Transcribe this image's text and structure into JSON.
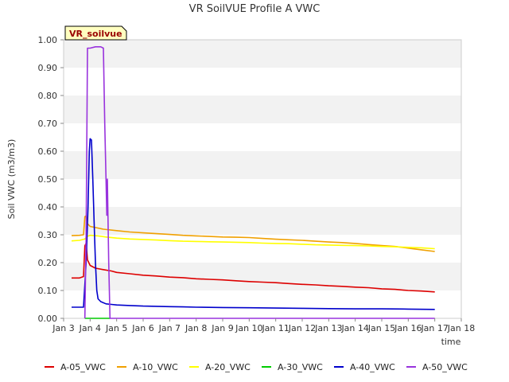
{
  "chart_data": {
    "type": "line",
    "title": "VR SoilVUE Profile A VWC",
    "xlabel": "time",
    "ylabel": "Soil VWC (m3/m3)",
    "site_badge": "VR_soilvue",
    "xlim": [
      3,
      18
    ],
    "ylim": [
      0,
      1.0
    ],
    "x_ticks": [
      3,
      4,
      5,
      6,
      7,
      8,
      9,
      10,
      11,
      12,
      13,
      14,
      15,
      16,
      17,
      18
    ],
    "x_tick_labels": [
      "Jan 3",
      "Jan 4",
      "Jan 5",
      "Jan 6",
      "Jan 7",
      "Jan 8",
      "Jan 9",
      "Jan 10",
      "Jan 11",
      "Jan 12",
      "Jan 13",
      "Jan 14",
      "Jan 15",
      "Jan 16",
      "Jan 17",
      "Jan 18"
    ],
    "y_ticks": [
      0,
      0.1,
      0.2,
      0.3,
      0.4,
      0.5,
      0.6,
      0.7,
      0.8,
      0.9,
      1.0
    ],
    "y_tick_labels": [
      "0.00",
      "0.10",
      "0.20",
      "0.30",
      "0.40",
      "0.50",
      "0.60",
      "0.70",
      "0.80",
      "0.90",
      "1.00"
    ],
    "grid": "horizontal bands",
    "legend_position": "bottom",
    "series": [
      {
        "name": "A-05_VWC",
        "color": "#dd0000",
        "points": [
          [
            3.3,
            0.145
          ],
          [
            3.6,
            0.145
          ],
          [
            3.75,
            0.15
          ],
          [
            3.8,
            0.26
          ],
          [
            3.85,
            0.27
          ],
          [
            3.9,
            0.21
          ],
          [
            4.0,
            0.19
          ],
          [
            4.2,
            0.18
          ],
          [
            4.5,
            0.175
          ],
          [
            4.8,
            0.17
          ],
          [
            5.0,
            0.165
          ],
          [
            5.5,
            0.16
          ],
          [
            6.0,
            0.155
          ],
          [
            6.5,
            0.152
          ],
          [
            7.0,
            0.148
          ],
          [
            7.5,
            0.146
          ],
          [
            8.0,
            0.142
          ],
          [
            8.5,
            0.14
          ],
          [
            9.0,
            0.138
          ],
          [
            9.5,
            0.135
          ],
          [
            10.0,
            0.132
          ],
          [
            10.5,
            0.13
          ],
          [
            11.0,
            0.128
          ],
          [
            11.5,
            0.125
          ],
          [
            12.0,
            0.122
          ],
          [
            12.5,
            0.12
          ],
          [
            13.0,
            0.117
          ],
          [
            13.5,
            0.115
          ],
          [
            14.0,
            0.112
          ],
          [
            14.5,
            0.11
          ],
          [
            15.0,
            0.106
          ],
          [
            15.5,
            0.104
          ],
          [
            16.0,
            0.1
          ],
          [
            16.5,
            0.098
          ],
          [
            17.0,
            0.095
          ]
        ]
      },
      {
        "name": "A-10_VWC",
        "color": "#f0a000",
        "points": [
          [
            3.3,
            0.297
          ],
          [
            3.6,
            0.298
          ],
          [
            3.75,
            0.3
          ],
          [
            3.8,
            0.365
          ],
          [
            3.85,
            0.368
          ],
          [
            3.9,
            0.34
          ],
          [
            4.0,
            0.33
          ],
          [
            4.5,
            0.32
          ],
          [
            5.0,
            0.315
          ],
          [
            5.5,
            0.31
          ],
          [
            6.0,
            0.307
          ],
          [
            6.5,
            0.304
          ],
          [
            7.0,
            0.301
          ],
          [
            7.5,
            0.298
          ],
          [
            8.0,
            0.296
          ],
          [
            8.5,
            0.294
          ],
          [
            9.0,
            0.292
          ],
          [
            9.5,
            0.291
          ],
          [
            10.0,
            0.29
          ],
          [
            10.5,
            0.287
          ],
          [
            11.0,
            0.284
          ],
          [
            11.5,
            0.282
          ],
          [
            12.0,
            0.28
          ],
          [
            12.5,
            0.277
          ],
          [
            13.0,
            0.274
          ],
          [
            13.5,
            0.272
          ],
          [
            14.0,
            0.269
          ],
          [
            14.5,
            0.265
          ],
          [
            15.0,
            0.261
          ],
          [
            15.5,
            0.258
          ],
          [
            16.0,
            0.252
          ],
          [
            16.5,
            0.246
          ],
          [
            17.0,
            0.24
          ]
        ]
      },
      {
        "name": "A-20_VWC",
        "color": "#ffff00",
        "points": [
          [
            3.3,
            0.278
          ],
          [
            3.6,
            0.28
          ],
          [
            3.8,
            0.285
          ],
          [
            3.9,
            0.295
          ],
          [
            4.0,
            0.298
          ],
          [
            4.3,
            0.296
          ],
          [
            4.6,
            0.292
          ],
          [
            5.0,
            0.288
          ],
          [
            5.5,
            0.285
          ],
          [
            6.0,
            0.283
          ],
          [
            6.5,
            0.281
          ],
          [
            7.0,
            0.279
          ],
          [
            7.5,
            0.277
          ],
          [
            8.0,
            0.276
          ],
          [
            8.5,
            0.275
          ],
          [
            9.0,
            0.274
          ],
          [
            9.5,
            0.273
          ],
          [
            10.0,
            0.272
          ],
          [
            10.5,
            0.27
          ],
          [
            11.0,
            0.269
          ],
          [
            11.5,
            0.268
          ],
          [
            12.0,
            0.266
          ],
          [
            12.5,
            0.264
          ],
          [
            13.0,
            0.263
          ],
          [
            13.5,
            0.262
          ],
          [
            14.0,
            0.261
          ],
          [
            14.5,
            0.26
          ],
          [
            15.0,
            0.258
          ],
          [
            15.5,
            0.257
          ],
          [
            16.0,
            0.255
          ],
          [
            16.5,
            0.253
          ],
          [
            17.0,
            0.25
          ]
        ]
      },
      {
        "name": "A-30_VWC",
        "color": "#00cc00",
        "points": [
          [
            3.8,
            0.0
          ],
          [
            4.0,
            0.0
          ],
          [
            4.3,
            0.0
          ],
          [
            4.6,
            0.0
          ],
          [
            4.75,
            0.0
          ]
        ]
      },
      {
        "name": "A-40_VWC",
        "color": "#0000cc",
        "points": [
          [
            3.3,
            0.04
          ],
          [
            3.5,
            0.04
          ],
          [
            3.75,
            0.04
          ],
          [
            3.85,
            0.2
          ],
          [
            3.92,
            0.4
          ],
          [
            3.97,
            0.6
          ],
          [
            4.0,
            0.645
          ],
          [
            4.05,
            0.64
          ],
          [
            4.1,
            0.5
          ],
          [
            4.15,
            0.35
          ],
          [
            4.2,
            0.2
          ],
          [
            4.25,
            0.1
          ],
          [
            4.3,
            0.07
          ],
          [
            4.4,
            0.06
          ],
          [
            4.6,
            0.052
          ],
          [
            4.8,
            0.05
          ],
          [
            5.0,
            0.048
          ],
          [
            5.5,
            0.046
          ],
          [
            6.0,
            0.044
          ],
          [
            6.5,
            0.043
          ],
          [
            7.0,
            0.042
          ],
          [
            7.5,
            0.041
          ],
          [
            8.0,
            0.04
          ],
          [
            9.0,
            0.039
          ],
          [
            10.0,
            0.038
          ],
          [
            11.0,
            0.037
          ],
          [
            12.0,
            0.036
          ],
          [
            13.0,
            0.035
          ],
          [
            14.0,
            0.034
          ],
          [
            15.0,
            0.034
          ],
          [
            16.0,
            0.033
          ],
          [
            17.0,
            0.032
          ]
        ]
      },
      {
        "name": "A-50_VWC",
        "color": "#9933dd",
        "points": [
          [
            3.8,
            0.0
          ],
          [
            3.85,
            0.3
          ],
          [
            3.9,
            0.97
          ],
          [
            4.0,
            0.97
          ],
          [
            4.2,
            0.975
          ],
          [
            4.4,
            0.975
          ],
          [
            4.5,
            0.97
          ],
          [
            4.55,
            0.7
          ],
          [
            4.6,
            0.5
          ],
          [
            4.63,
            0.37
          ],
          [
            4.65,
            0.5
          ],
          [
            4.7,
            0.2
          ],
          [
            4.75,
            0.0
          ],
          [
            5.0,
            0.0
          ],
          [
            8.0,
            0.0
          ],
          [
            11.0,
            0.0
          ],
          [
            14.0,
            0.0
          ],
          [
            17.0,
            0.0
          ]
        ]
      }
    ]
  }
}
